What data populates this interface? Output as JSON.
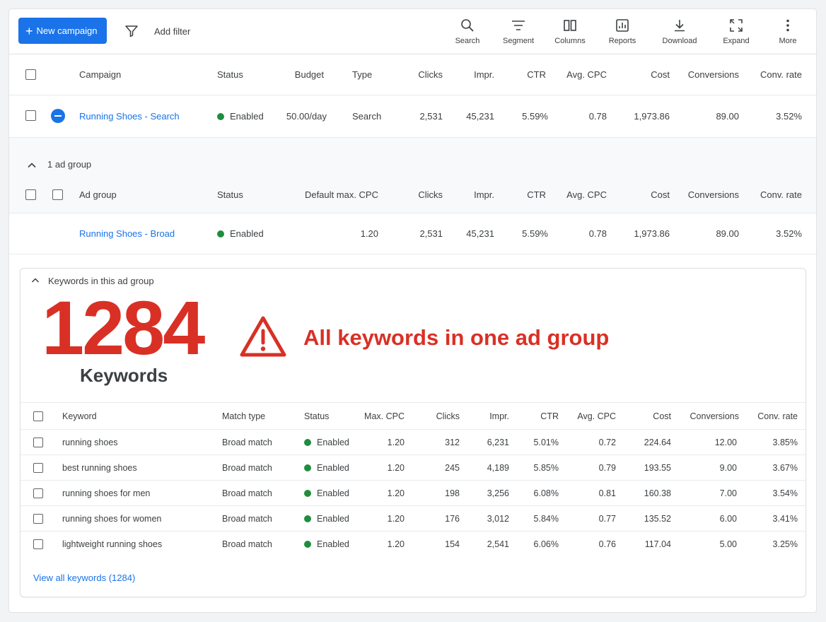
{
  "toolbar": {
    "new_campaign": "New campaign",
    "add_filter": "Add filter",
    "tools": [
      {
        "label": "Search",
        "icon": "search-icon"
      },
      {
        "label": "Segment",
        "icon": "segment-icon"
      },
      {
        "label": "Columns",
        "icon": "columns-icon"
      },
      {
        "label": "Reports",
        "icon": "reports-icon"
      },
      {
        "label": "Download",
        "icon": "download-icon"
      },
      {
        "label": "Expand",
        "icon": "expand-icon"
      },
      {
        "label": "More",
        "icon": "more-icon"
      }
    ]
  },
  "campaign_table": {
    "headers": {
      "campaign": "Campaign",
      "status": "Status",
      "budget": "Budget",
      "type": "Type",
      "clicks": "Clicks",
      "impr": "Impr.",
      "ctr": "CTR",
      "avg_cpc": "Avg. CPC",
      "cost": "Cost",
      "conversions": "Conversions",
      "conv_rate": "Conv. rate"
    },
    "row": {
      "name": "Running Shoes - Search",
      "status": "Enabled",
      "budget": "50.00/day",
      "type": "Search",
      "clicks": "2,531",
      "impr": "45,231",
      "ctr": "5.59%",
      "avg_cpc": "0.78",
      "cost": "1,973.86",
      "conversions": "89.00",
      "conv_rate": "3.52%"
    }
  },
  "ad_group_section": {
    "toggle_label": "1 ad group",
    "headers": {
      "ad_group": "Ad group",
      "status": "Status",
      "default_max_cpc": "Default max. CPC",
      "clicks": "Clicks",
      "impr": "Impr.",
      "ctr": "CTR",
      "avg_cpc": "Avg. CPC",
      "cost": "Cost",
      "conversions": "Conversions",
      "conv_rate": "Conv. rate"
    },
    "row": {
      "name": "Running Shoes - Broad",
      "status": "Enabled",
      "default_max_cpc": "1.20",
      "clicks": "2,531",
      "impr": "45,231",
      "ctr": "5.59%",
      "avg_cpc": "0.78",
      "cost": "1,973.86",
      "conversions": "89.00",
      "conv_rate": "3.52%"
    }
  },
  "keywords_section": {
    "toggle_label": "Keywords in this ad group",
    "big_number": "1284",
    "big_label": "Keywords",
    "warning_text": "All keywords in one ad group",
    "headers": {
      "keyword": "Keyword",
      "match_type": "Match type",
      "status": "Status",
      "max_cpc": "Max. CPC",
      "clicks": "Clicks",
      "impr": "Impr.",
      "ctr": "CTR",
      "avg_cpc": "Avg. CPC",
      "cost": "Cost",
      "conversions": "Conversions",
      "conv_rate": "Conv. rate"
    },
    "rows": [
      {
        "keyword": "running shoes",
        "match_type": "Broad match",
        "status": "Enabled",
        "max_cpc": "1.20",
        "clicks": "312",
        "impr": "6,231",
        "ctr": "5.01%",
        "avg_cpc": "0.72",
        "cost": "224.64",
        "conversions": "12.00",
        "conv_rate": "3.85%"
      },
      {
        "keyword": "best running shoes",
        "match_type": "Broad match",
        "status": "Enabled",
        "max_cpc": "1.20",
        "clicks": "245",
        "impr": "4,189",
        "ctr": "5.85%",
        "avg_cpc": "0.79",
        "cost": "193.55",
        "conversions": "9.00",
        "conv_rate": "3.67%"
      },
      {
        "keyword": "running shoes for men",
        "match_type": "Broad match",
        "status": "Enabled",
        "max_cpc": "1.20",
        "clicks": "198",
        "impr": "3,256",
        "ctr": "6.08%",
        "avg_cpc": "0.81",
        "cost": "160.38",
        "conversions": "7.00",
        "conv_rate": "3.54%"
      },
      {
        "keyword": "running shoes for women",
        "match_type": "Broad match",
        "status": "Enabled",
        "max_cpc": "1.20",
        "clicks": "176",
        "impr": "3,012",
        "ctr": "5.84%",
        "avg_cpc": "0.77",
        "cost": "135.52",
        "conversions": "6.00",
        "conv_rate": "3.41%"
      },
      {
        "keyword": "lightweight running shoes",
        "match_type": "Broad match",
        "status": "Enabled",
        "max_cpc": "1.20",
        "clicks": "154",
        "impr": "2,541",
        "ctr": "6.06%",
        "avg_cpc": "0.76",
        "cost": "117.04",
        "conversions": "5.00",
        "conv_rate": "3.25%"
      }
    ],
    "view_all": "View all keywords (1284)"
  },
  "colors": {
    "primary": "#1a73e8",
    "enabled": "#1e8e3e",
    "warning": "#d93025",
    "text": "#3c4043"
  }
}
